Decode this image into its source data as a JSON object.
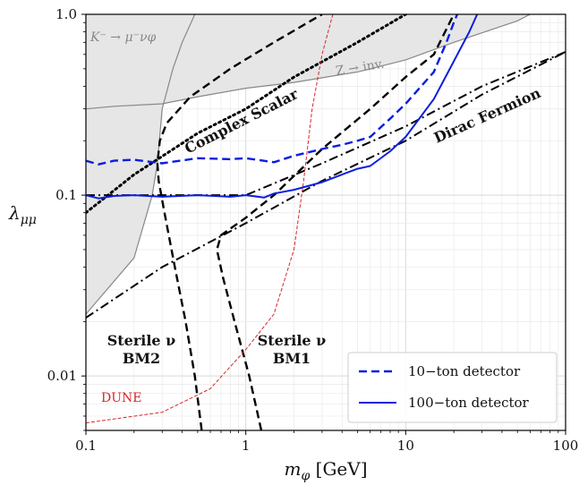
{
  "chart_data": {
    "type": "line",
    "xscale": "log",
    "yscale": "log",
    "xlim": [
      0.1,
      100
    ],
    "ylim": [
      0.005,
      1.0
    ],
    "grid": true,
    "xlabel_main": "m",
    "xlabel_sub": "φ",
    "xlabel_unit": " [GeV]",
    "ylabel_main": "λ",
    "ylabel_sub": "μμ",
    "x_ticks": [
      {
        "value": 0.1,
        "label": "0.1"
      },
      {
        "value": 1,
        "label": "1"
      },
      {
        "value": 10,
        "label": "10"
      },
      {
        "value": 100,
        "label": "100"
      }
    ],
    "y_ticks": [
      {
        "value": 0.01,
        "label": "0.01"
      },
      {
        "value": 0.1,
        "label": "0.1"
      },
      {
        "value": 1.0,
        "label": "1.0"
      }
    ],
    "colors": {
      "blue": "#0b1ee0",
      "red": "#d62728",
      "gray_line": "#888888",
      "shade": "#e6e6e6",
      "black": "#000000"
    },
    "regions": [
      {
        "name": "K_bound",
        "points": [
          [
            0.1,
            1.0
          ],
          [
            0.1,
            0.022
          ],
          [
            0.2,
            0.045
          ],
          [
            0.26,
            0.1
          ],
          [
            0.28,
            0.15
          ],
          [
            0.3,
            0.3
          ],
          [
            0.35,
            0.5
          ],
          [
            0.4,
            0.7
          ],
          [
            0.48,
            1.0
          ]
        ]
      },
      {
        "name": "Z_bound",
        "points": [
          [
            0.1,
            1.0
          ],
          [
            0.1,
            0.3
          ],
          [
            0.15,
            0.31
          ],
          [
            0.3,
            0.32
          ],
          [
            0.5,
            0.35
          ],
          [
            1,
            0.39
          ],
          [
            2,
            0.42
          ],
          [
            5,
            0.48
          ],
          [
            10,
            0.56
          ],
          [
            20,
            0.7
          ],
          [
            50,
            0.92
          ],
          [
            60,
            1.0
          ]
        ]
      }
    ],
    "series": [
      {
        "name": "10−ton detector",
        "style": "dashed",
        "color": "blue",
        "points": [
          [
            0.1,
            0.155
          ],
          [
            0.12,
            0.148
          ],
          [
            0.15,
            0.155
          ],
          [
            0.2,
            0.157
          ],
          [
            0.3,
            0.15
          ],
          [
            0.5,
            0.16
          ],
          [
            0.8,
            0.158
          ],
          [
            1.0,
            0.16
          ],
          [
            1.5,
            0.152
          ],
          [
            2.0,
            0.165
          ],
          [
            3.0,
            0.18
          ],
          [
            4.0,
            0.19
          ],
          [
            5.0,
            0.2
          ],
          [
            6.0,
            0.21
          ],
          [
            8.0,
            0.265
          ],
          [
            10.0,
            0.32
          ],
          [
            15.0,
            0.48
          ],
          [
            18.0,
            0.7
          ],
          [
            20.0,
            0.9
          ],
          [
            21.0,
            1.0
          ]
        ]
      },
      {
        "name": "100−ton detector",
        "style": "solid",
        "color": "blue",
        "points": [
          [
            0.1,
            0.1
          ],
          [
            0.12,
            0.096
          ],
          [
            0.15,
            0.099
          ],
          [
            0.2,
            0.1
          ],
          [
            0.3,
            0.098
          ],
          [
            0.5,
            0.1
          ],
          [
            0.8,
            0.098
          ],
          [
            1.0,
            0.1
          ],
          [
            1.3,
            0.097
          ],
          [
            1.5,
            0.102
          ],
          [
            2.0,
            0.107
          ],
          [
            3.0,
            0.118
          ],
          [
            4.0,
            0.13
          ],
          [
            5.0,
            0.14
          ],
          [
            6.0,
            0.145
          ],
          [
            8.0,
            0.175
          ],
          [
            10.0,
            0.21
          ],
          [
            15.0,
            0.34
          ],
          [
            20.0,
            0.55
          ],
          [
            25.0,
            0.8
          ],
          [
            28.0,
            1.0
          ]
        ]
      }
    ],
    "bounds": [
      {
        "name": "Sterile BM2",
        "style": "dashed",
        "color": "black",
        "points": [
          [
            0.53,
            0.005
          ],
          [
            0.48,
            0.01
          ],
          [
            0.42,
            0.02
          ],
          [
            0.36,
            0.04
          ],
          [
            0.31,
            0.08
          ],
          [
            0.285,
            0.12
          ],
          [
            0.28,
            0.15
          ],
          [
            0.29,
            0.2
          ],
          [
            0.32,
            0.25
          ],
          [
            0.45,
            0.35
          ],
          [
            0.8,
            0.5
          ],
          [
            1.5,
            0.7
          ],
          [
            3.0,
            1.0
          ]
        ]
      },
      {
        "name": "Sterile BM1",
        "style": "dashed",
        "color": "black",
        "points": [
          [
            1.25,
            0.005
          ],
          [
            1.05,
            0.01
          ],
          [
            0.85,
            0.02
          ],
          [
            0.72,
            0.035
          ],
          [
            0.66,
            0.05
          ],
          [
            0.7,
            0.06
          ],
          [
            1.0,
            0.075
          ],
          [
            1.5,
            0.1
          ],
          [
            3.0,
            0.18
          ],
          [
            6.0,
            0.3
          ],
          [
            10.0,
            0.45
          ],
          [
            15.0,
            0.6
          ],
          [
            20.0,
            1.0
          ]
        ]
      },
      {
        "name": "Complex Scalar",
        "style": "dotted",
        "color": "black",
        "points": [
          [
            0.1,
            0.08
          ],
          [
            0.2,
            0.13
          ],
          [
            0.5,
            0.22
          ],
          [
            1.0,
            0.3
          ],
          [
            2.0,
            0.45
          ],
          [
            5.0,
            0.7
          ],
          [
            10.0,
            1.0
          ]
        ]
      },
      {
        "name": "Dirac Fermion",
        "style": "dashdot",
        "color": "black",
        "points": [
          [
            0.1,
            0.1
          ],
          [
            0.3,
            0.1
          ],
          [
            1.0,
            0.1
          ],
          [
            3.0,
            0.15
          ],
          [
            10.0,
            0.24
          ],
          [
            30.0,
            0.4
          ],
          [
            100.0,
            0.62
          ]
        ]
      },
      {
        "name": "Dirac Fermion lower",
        "style": "dashdot",
        "color": "black",
        "points": [
          [
            0.1,
            0.021
          ],
          [
            0.3,
            0.04
          ],
          [
            1.0,
            0.07
          ],
          [
            3.0,
            0.12
          ],
          [
            10.0,
            0.2
          ],
          [
            30.0,
            0.36
          ],
          [
            100.0,
            0.62
          ]
        ]
      },
      {
        "name": "DUNE",
        "style": "thin-dashed",
        "color": "red",
        "points": [
          [
            0.1,
            0.0055
          ],
          [
            0.3,
            0.0063
          ],
          [
            0.6,
            0.0085
          ],
          [
            1.0,
            0.014
          ],
          [
            1.5,
            0.022
          ],
          [
            2.0,
            0.05
          ],
          [
            2.3,
            0.12
          ],
          [
            2.6,
            0.3
          ],
          [
            3.0,
            0.6
          ],
          [
            3.5,
            1.0
          ]
        ]
      }
    ],
    "annotations": {
      "k_label": "K⁻ → μ⁻νφ",
      "z_label": "Z → inv.",
      "complex_scalar": "Complex Scalar",
      "dirac_fermion": "Dirac Fermion",
      "sterile_bm2_line1": "Sterile ν",
      "sterile_bm2_line2": "BM2",
      "sterile_bm1_line1": "Sterile ν",
      "sterile_bm1_line2": "BM1",
      "dune": "DUNE"
    },
    "legend": {
      "placement": "bottom-right",
      "entries": [
        {
          "label": "10−ton detector",
          "style": "dashed",
          "color": "blue"
        },
        {
          "label": "100−ton detector",
          "style": "solid",
          "color": "blue"
        }
      ]
    }
  }
}
